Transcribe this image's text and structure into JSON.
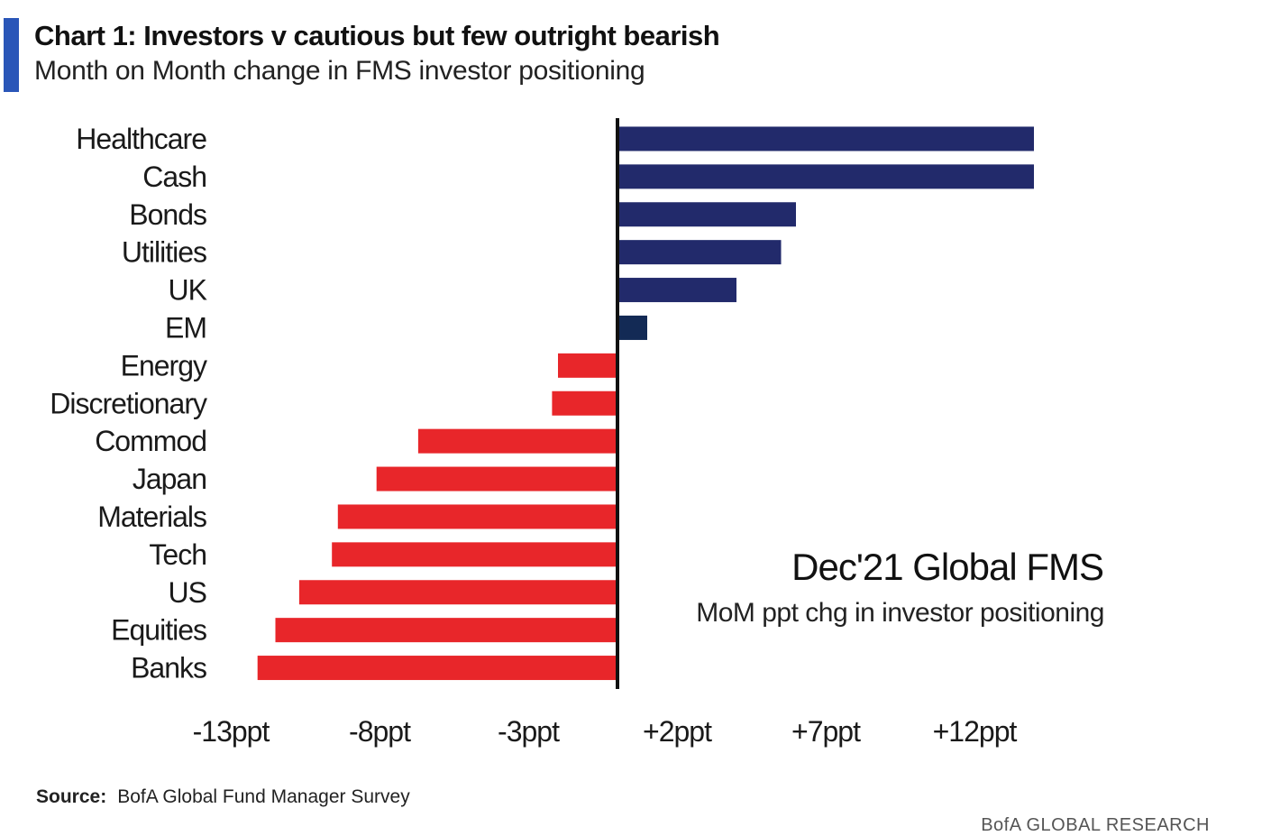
{
  "header": {
    "title": "Chart 1: Investors v cautious but few outright bearish",
    "subtitle": "Month on Month change in FMS investor positioning"
  },
  "chart_data": {
    "type": "bar",
    "orientation": "horizontal",
    "categories": [
      "Healthcare",
      "Cash",
      "Bonds",
      "Utilities",
      "UK",
      "EM",
      "Energy",
      "Discretionary",
      "Commod",
      "Japan",
      "Materials",
      "Tech",
      "US",
      "Equities",
      "Banks"
    ],
    "values": [
      14,
      14,
      6,
      5.5,
      4,
      1,
      -2,
      -2.2,
      -6.7,
      -8.1,
      -9.4,
      -9.6,
      -10.7,
      -11.5,
      -12.1
    ],
    "xlim": [
      -13.5,
      14
    ],
    "xticks": [
      -13,
      -8,
      -3,
      2,
      7,
      12
    ],
    "xtick_labels": [
      "-13ppt",
      "-8ppt",
      "-3ppt",
      "+2ppt",
      "+7ppt",
      "+12ppt"
    ],
    "annotation": {
      "title": "Dec'21 Global FMS",
      "subtitle": "MoM ppt chg in investor positioning"
    },
    "colors": {
      "positive": "#222a6b",
      "emphasis": "#132a55",
      "negative": "#e8262a",
      "axis": "#111111"
    },
    "grid": false,
    "legend": "none"
  },
  "footer": {
    "source_label": "Source:",
    "source_text": "BofA Global Fund Manager Survey",
    "brand": "BofA GLOBAL RESEARCH"
  }
}
